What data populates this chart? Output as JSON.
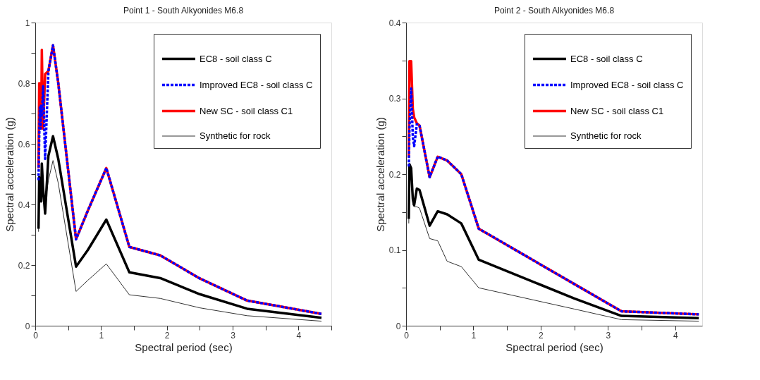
{
  "chart_data": [
    {
      "type": "line",
      "title": "Point 1 - South Alkyonides M6.8",
      "xlabel": "Spectral period (sec)",
      "ylabel": "Spectral acceleration (g)",
      "xlim": [
        0,
        4.5
      ],
      "xticks": [
        0,
        {
          "value": 0.5,
          "label": null
        },
        1,
        {
          "value": 1.5,
          "label": null
        },
        2,
        {
          "value": 2.5,
          "label": null
        },
        3,
        {
          "value": 3.5,
          "label": null
        },
        4,
        {
          "value": 4.5,
          "label": null
        }
      ],
      "ylim": [
        0,
        1
      ],
      "yticks": [
        0,
        {
          "value": 0.1,
          "label": null
        },
        0.2,
        {
          "value": 0.3,
          "label": null
        },
        0.4,
        {
          "value": 0.5,
          "label": null
        },
        0.6,
        {
          "value": 0.7,
          "label": null
        },
        0.8,
        {
          "value": 0.9,
          "label": null
        },
        1
      ],
      "legend": "top right",
      "x": [
        0.05,
        0.06,
        0.07,
        0.08,
        0.09,
        0.1,
        0.12,
        0.15,
        0.2,
        0.27,
        0.35,
        0.62,
        0.8,
        1.08,
        1.43,
        1.9,
        2.5,
        3.22,
        4.35
      ],
      "series": [
        {
          "name": "EC8 - soil class C",
          "color": "#000000",
          "line_style": "solid",
          "values": [
            0.32,
            0.49,
            0.41,
            0.47,
            0.41,
            0.535,
            0.45,
            0.37,
            0.56,
            0.625,
            0.55,
            0.195,
            0.25,
            0.35,
            0.176,
            0.157,
            0.104,
            0.056,
            0.026
          ]
        },
        {
          "name": "Improved EC8 - soil class C",
          "color": "#0000ff",
          "line_style": "dashed",
          "values": [
            0.48,
            0.62,
            0.72,
            0.65,
            0.73,
            0.69,
            0.79,
            0.55,
            0.84,
            0.925,
            0.8,
            0.285,
            0.38,
            0.52,
            0.26,
            0.232,
            0.156,
            0.083,
            0.039
          ]
        },
        {
          "name": "New SC - soil class C1",
          "color": "#ff0000",
          "line_style": "solid",
          "values": [
            0.52,
            0.8,
            0.7,
            0.8,
            0.65,
            0.91,
            0.65,
            0.83,
            0.84,
            0.925,
            0.8,
            0.285,
            0.38,
            0.52,
            0.26,
            0.232,
            0.156,
            0.083,
            0.039
          ]
        },
        {
          "name": "Synthetic for rock",
          "color": "#333333",
          "line_style": "solid",
          "values": [
            0.31,
            0.46,
            0.44,
            0.46,
            0.42,
            0.48,
            0.44,
            0.4,
            0.48,
            0.545,
            0.47,
            0.113,
            0.15,
            0.204,
            0.102,
            0.09,
            0.059,
            0.033,
            0.015
          ]
        }
      ]
    },
    {
      "type": "line",
      "title": "Point 2 - South Alkyonides M6.8",
      "xlabel": "Spectral period (sec)",
      "ylabel": "Spectral acceleration (g)",
      "xlim": [
        0,
        4.4
      ],
      "xticks": [
        0,
        {
          "value": 0.5,
          "label": null
        },
        1,
        {
          "value": 1.5,
          "label": null
        },
        2,
        {
          "value": 2.5,
          "label": null
        },
        3,
        {
          "value": 3.5,
          "label": null
        },
        4
      ],
      "ylim": [
        0,
        0.4
      ],
      "yticks": [
        0,
        {
          "value": 0.05,
          "label": null
        },
        0.1,
        {
          "value": 0.15,
          "label": null
        },
        0.2,
        {
          "value": 0.25,
          "label": null
        },
        0.3,
        {
          "value": 0.35,
          "label": null
        },
        0.4
      ],
      "legend": "top right",
      "x": [
        0.04,
        0.05,
        0.075,
        0.1,
        0.12,
        0.16,
        0.2,
        0.35,
        0.47,
        0.61,
        0.82,
        1.08,
        2.5,
        3.2,
        4.35
      ],
      "series": [
        {
          "name": "EC8 - soil class C",
          "color": "#000000",
          "line_style": "solid",
          "values": [
            0.141,
            0.213,
            0.208,
            0.167,
            0.159,
            0.181,
            0.179,
            0.132,
            0.151,
            0.147,
            0.135,
            0.087,
            0.036,
            0.013,
            0.01
          ]
        },
        {
          "name": "Improved EC8 - soil class C",
          "color": "#0000ff",
          "line_style": "dashed",
          "values": [
            0.21,
            0.26,
            0.313,
            0.249,
            0.237,
            0.266,
            0.264,
            0.196,
            0.223,
            0.218,
            0.2,
            0.128,
            0.055,
            0.019,
            0.015
          ]
        },
        {
          "name": "New SC - soil class C1",
          "color": "#ff0000",
          "line_style": "solid",
          "values": [
            0.222,
            0.349,
            0.349,
            0.286,
            0.275,
            0.267,
            0.264,
            0.196,
            0.223,
            0.218,
            0.2,
            0.128,
            0.055,
            0.019,
            0.015
          ]
        },
        {
          "name": "Synthetic for rock",
          "color": "#333333",
          "line_style": "solid",
          "values": [
            0.135,
            0.21,
            0.205,
            0.16,
            0.157,
            0.157,
            0.155,
            0.115,
            0.112,
            0.085,
            0.078,
            0.05,
            0.022,
            0.008,
            0.006
          ]
        }
      ]
    }
  ]
}
